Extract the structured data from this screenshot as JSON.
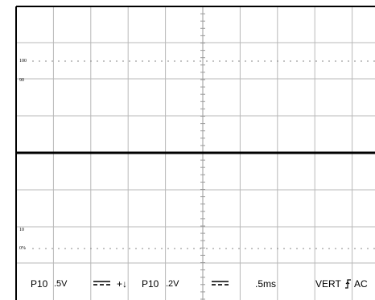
{
  "graticule": {
    "markers": {
      "m100": "100",
      "m90": "90",
      "m10": "10",
      "m0": "0%"
    }
  },
  "status_bar": {
    "ch1_probe": "P10",
    "ch1_scale": ".5V",
    "ch1_coupling_symbol": "⎓",
    "ch2_polarity": "+↓",
    "ch2_probe": "P10",
    "ch2_scale": ".2V",
    "ch2_coupling_symbol": "⎓",
    "timebase": ".5ms",
    "trigger_source": "VERT",
    "trigger_slope_symbol": "⌇",
    "trigger_coupling": "AC"
  },
  "colors": {
    "grid_line": "#b8b8b8",
    "frame": "#000000",
    "trace": "#000000",
    "background": "#ffffff"
  }
}
